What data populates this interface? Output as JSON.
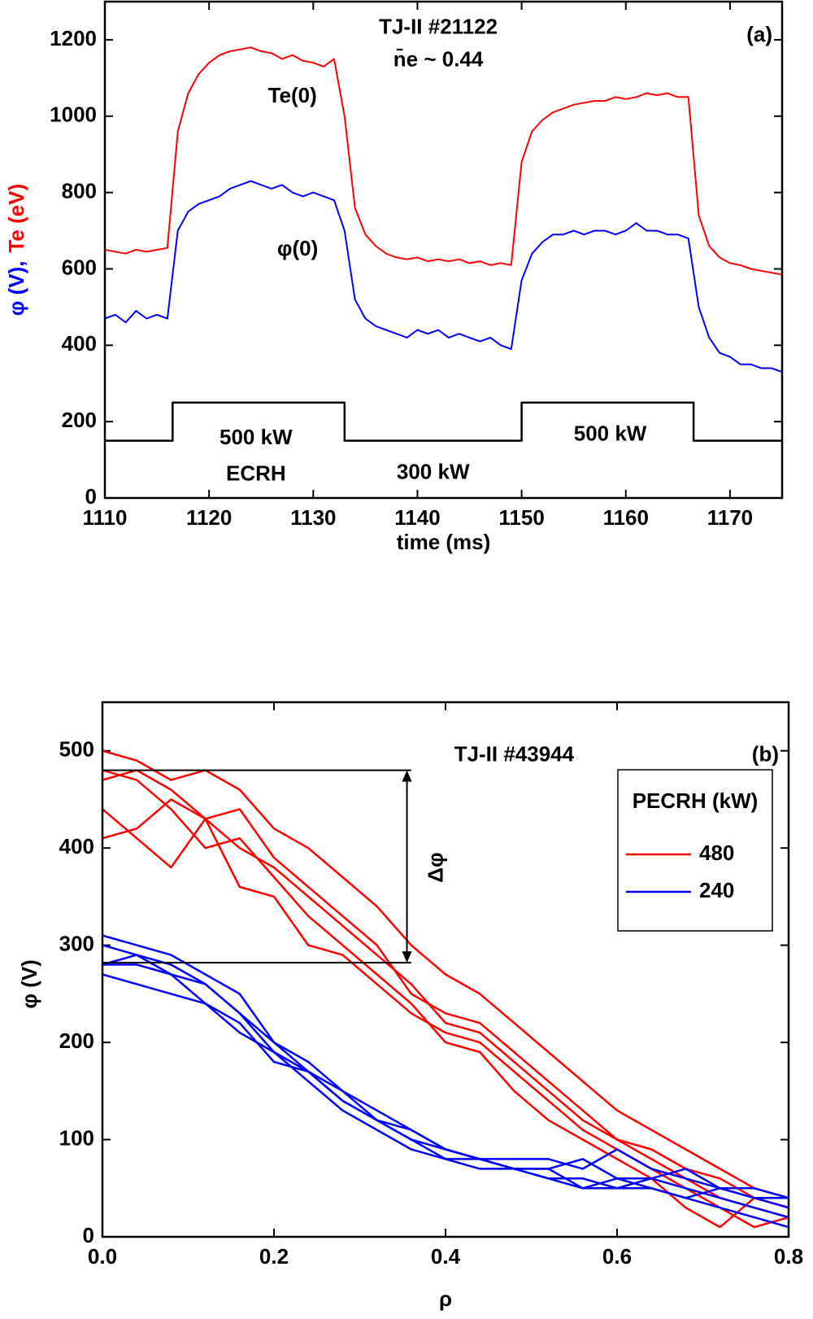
{
  "chart_data": [
    {
      "type": "line",
      "xlabel": "time (ms)",
      "ylabel": [
        "φ (V),",
        "Te (eV)"
      ],
      "xlim": [
        1110,
        1175
      ],
      "xticks": [
        1110,
        1120,
        1130,
        1140,
        1150,
        1160,
        1170
      ],
      "ylim": [
        0,
        1300
      ],
      "yticks": [
        0,
        200,
        400,
        600,
        800,
        1000,
        1200
      ],
      "annotations": [
        "TJ-II  #21122",
        "n̄e ~ 0.44",
        "(a)",
        "500 kW",
        "ECRH",
        "300 kW",
        "500 kW"
      ],
      "series": [
        {
          "name": "Te(0)",
          "color": "#ff0000",
          "x": [
            1110,
            1111,
            1112,
            1113,
            1114,
            1115,
            1116,
            1117,
            1118,
            1119,
            1120,
            1121,
            1122,
            1123,
            1124,
            1125,
            1126,
            1127,
            1128,
            1129,
            1130,
            1131,
            1132,
            1133,
            1134,
            1135,
            1136,
            1137,
            1138,
            1139,
            1140,
            1141,
            1142,
            1143,
            1144,
            1145,
            1146,
            1147,
            1148,
            1149,
            1150,
            1151,
            1152,
            1153,
            1154,
            1155,
            1156,
            1157,
            1158,
            1159,
            1160,
            1161,
            1162,
            1163,
            1164,
            1165,
            1166,
            1167,
            1168,
            1169,
            1170,
            1171,
            1172,
            1173,
            1174,
            1175
          ],
          "values": [
            650,
            645,
            640,
            650,
            645,
            650,
            655,
            960,
            1060,
            1110,
            1140,
            1160,
            1170,
            1175,
            1180,
            1170,
            1165,
            1150,
            1160,
            1145,
            1140,
            1130,
            1150,
            1000,
            760,
            690,
            660,
            640,
            630,
            625,
            630,
            620,
            625,
            620,
            625,
            615,
            620,
            610,
            615,
            610,
            880,
            960,
            990,
            1010,
            1020,
            1030,
            1035,
            1040,
            1040,
            1050,
            1045,
            1050,
            1060,
            1055,
            1060,
            1050,
            1050,
            740,
            660,
            630,
            615,
            610,
            600,
            595,
            590,
            585
          ]
        },
        {
          "name": "φ(0)",
          "color": "#0000ff",
          "x": [
            1110,
            1111,
            1112,
            1113,
            1114,
            1115,
            1116,
            1117,
            1118,
            1119,
            1120,
            1121,
            1122,
            1123,
            1124,
            1125,
            1126,
            1127,
            1128,
            1129,
            1130,
            1131,
            1132,
            1133,
            1134,
            1135,
            1136,
            1137,
            1138,
            1139,
            1140,
            1141,
            1142,
            1143,
            1144,
            1145,
            1146,
            1147,
            1148,
            1149,
            1150,
            1151,
            1152,
            1153,
            1154,
            1155,
            1156,
            1157,
            1158,
            1159,
            1160,
            1161,
            1162,
            1163,
            1164,
            1165,
            1166,
            1167,
            1168,
            1169,
            1170,
            1171,
            1172,
            1173,
            1174,
            1175
          ],
          "values": [
            470,
            480,
            460,
            490,
            470,
            480,
            470,
            700,
            750,
            770,
            780,
            790,
            810,
            820,
            830,
            820,
            810,
            820,
            800,
            790,
            800,
            790,
            780,
            700,
            520,
            470,
            450,
            440,
            430,
            420,
            440,
            430,
            440,
            420,
            430,
            420,
            410,
            420,
            400,
            390,
            570,
            640,
            670,
            690,
            690,
            700,
            690,
            700,
            700,
            690,
            700,
            720,
            700,
            700,
            690,
            690,
            680,
            500,
            420,
            380,
            370,
            350,
            350,
            340,
            340,
            330
          ]
        },
        {
          "color": "#000000",
          "x": [
            1110,
            1116.5,
            1116.5,
            1133,
            1133,
            1150,
            1150,
            1166.5,
            1166.5,
            1175
          ],
          "values": [
            150,
            150,
            250,
            250,
            150,
            150,
            250,
            250,
            150,
            150
          ]
        }
      ]
    },
    {
      "type": "line",
      "xlabel": "ρ",
      "ylabel": "φ (V)",
      "xlim": [
        0,
        0.8
      ],
      "xticks": [
        {
          "value": 0,
          "label": "0.0"
        },
        0.2,
        0.4,
        0.6,
        0.8
      ],
      "ylim": [
        0,
        550
      ],
      "yticks": [
        0,
        100,
        200,
        300,
        400,
        500
      ],
      "annotations": [
        "TJ-II  #43944",
        "(b)",
        "Δφ"
      ],
      "reference_lines": [
        480,
        282
      ],
      "legend_title": "PECRH (kW)",
      "x": [
        0,
        0.04,
        0.08,
        0.12,
        0.16,
        0.2,
        0.24,
        0.28,
        0.32,
        0.36,
        0.4,
        0.44,
        0.48,
        0.52,
        0.56,
        0.6,
        0.64,
        0.68,
        0.72,
        0.76,
        0.8
      ],
      "series": [
        {
          "name": "480",
          "color": "#ff0000",
          "profiles": [
            [
              500,
              490,
              470,
              480,
              460,
              420,
              400,
              370,
              340,
              300,
              270,
              250,
              220,
              190,
              160,
              130,
              110,
              90,
              70,
              50,
              40
            ],
            [
              440,
              410,
              380,
              430,
              400,
              380,
              350,
              320,
              290,
              260,
              220,
              210,
              180,
              150,
              120,
              100,
              90,
              70,
              60,
              40,
              30
            ],
            [
              410,
              420,
              450,
              430,
              360,
              350,
              300,
              290,
              260,
              230,
              210,
              200,
              170,
              140,
              110,
              90,
              70,
              50,
              30,
              10,
              20
            ],
            [
              470,
              480,
              460,
              430,
              440,
              390,
              360,
              330,
              300,
              250,
              230,
              220,
              190,
              160,
              130,
              100,
              80,
              60,
              40,
              30,
              20
            ],
            [
              480,
              470,
              440,
              400,
              410,
              370,
              330,
              300,
              270,
              240,
              200,
              190,
              150,
              120,
              100,
              80,
              60,
              30,
              10,
              40,
              30
            ]
          ]
        },
        {
          "name": "240",
          "color": "#0000ff",
          "profiles": [
            [
              310,
              300,
              290,
              270,
              250,
              200,
              180,
              150,
              130,
              110,
              90,
              80,
              70,
              70,
              80,
              60,
              60,
              70,
              50,
              40,
              30
            ],
            [
              280,
              280,
              270,
              260,
              230,
              200,
              170,
              140,
              120,
              100,
              80,
              80,
              70,
              60,
              50,
              60,
              50,
              40,
              50,
              40,
              40
            ],
            [
              270,
              260,
              250,
              240,
              210,
              190,
              160,
              130,
              110,
              90,
              80,
              70,
              70,
              70,
              50,
              50,
              50,
              40,
              30,
              20,
              10
            ],
            [
              300,
              290,
              280,
              260,
              230,
              190,
              170,
              150,
              120,
              100,
              90,
              80,
              80,
              80,
              70,
              90,
              70,
              60,
              50,
              50,
              40
            ],
            [
              280,
              290,
              270,
              240,
              220,
              180,
              170,
              140,
              120,
              110,
              90,
              80,
              70,
              60,
              60,
              50,
              60,
              50,
              40,
              30,
              20
            ]
          ]
        }
      ]
    }
  ]
}
